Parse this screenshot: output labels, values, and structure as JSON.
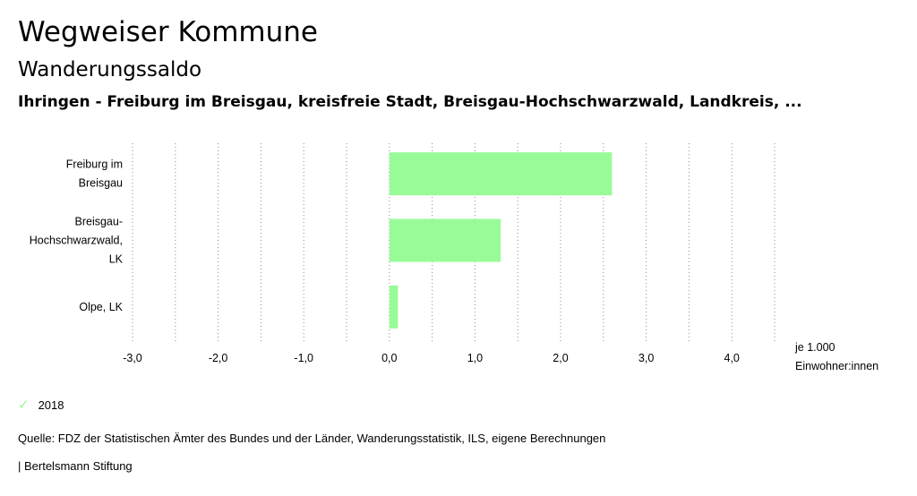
{
  "header": {
    "title": "Wegweiser Kommune",
    "subtitle": "Wanderungssaldo",
    "region": "Ihringen - Freiburg im Breisgau, kreisfreie Stadt, Breisgau-Hochschwarzwald, Landkreis, ..."
  },
  "chart_data": {
    "type": "bar",
    "orientation": "horizontal",
    "categories": [
      [
        "Freiburg im",
        "Breisgau"
      ],
      [
        "Breisgau-",
        "Hochschwarzwald,",
        "LK"
      ],
      [
        "Olpe, LK"
      ]
    ],
    "series": [
      {
        "name": "2018",
        "color": "#98fb98",
        "values": [
          2.6,
          1.3,
          0.1
        ]
      }
    ],
    "xlim": [
      -3.0,
      4.5
    ],
    "ticks": [
      -3.0,
      -2.0,
      -1.0,
      0.0,
      1.0,
      2.0,
      3.0,
      4.0
    ],
    "tick_labels": [
      "-3,0",
      "-2,0",
      "-1,0",
      "0,0",
      "1,0",
      "2,0",
      "3,0",
      "4,0"
    ],
    "minor_ticks": [
      -2.5,
      -1.5,
      -0.5,
      0.5,
      1.5,
      2.5,
      3.5,
      4.5
    ],
    "xlabel": [
      "je 1.000",
      "Einwohner:innen"
    ],
    "grid": true,
    "legend_position": "bottom-left"
  },
  "legend": {
    "icon": "check-icon",
    "label": "2018"
  },
  "footer": {
    "source": "Quelle: FDZ der Statistischen Ämter des Bundes und der Länder, Wanderungsstatistik, ILS, eigene Berechnungen",
    "credit": "| Bertelsmann Stiftung"
  }
}
